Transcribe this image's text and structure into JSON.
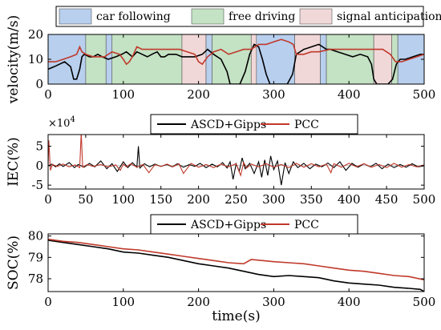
{
  "chart_data": [
    {
      "type": "line",
      "name": "velocity",
      "ylabel": "velocity(m/s)",
      "xlabel": "",
      "xlim": [
        0,
        500
      ],
      "ylim": [
        0,
        20
      ],
      "xticks": [
        "0",
        "100",
        "200",
        "300",
        "400",
        "500"
      ],
      "yticks": [
        "0",
        "10",
        "20"
      ],
      "legend": {
        "placement": "top",
        "entries": [
          {
            "label": "car following",
            "color": "#b8cfee"
          },
          {
            "label": "free driving",
            "color": "#c4e2c4"
          },
          {
            "label": "signal anticipation",
            "color": "#f1d8d8"
          }
        ]
      },
      "regions": [
        {
          "x0": 0,
          "x1": 50,
          "kind": "car following"
        },
        {
          "x0": 50,
          "x1": 77,
          "kind": "free driving"
        },
        {
          "x0": 77,
          "x1": 85,
          "kind": "car following"
        },
        {
          "x0": 85,
          "x1": 178,
          "kind": "free driving"
        },
        {
          "x0": 178,
          "x1": 210,
          "kind": "signal anticipation"
        },
        {
          "x0": 210,
          "x1": 218,
          "kind": "car following"
        },
        {
          "x0": 218,
          "x1": 270,
          "kind": "free driving"
        },
        {
          "x0": 270,
          "x1": 277,
          "kind": "signal anticipation"
        },
        {
          "x0": 277,
          "x1": 328,
          "kind": "car following"
        },
        {
          "x0": 328,
          "x1": 362,
          "kind": "signal anticipation"
        },
        {
          "x0": 362,
          "x1": 370,
          "kind": "car following"
        },
        {
          "x0": 370,
          "x1": 433,
          "kind": "free driving"
        },
        {
          "x0": 433,
          "x1": 457,
          "kind": "signal anticipation"
        },
        {
          "x0": 457,
          "x1": 465,
          "kind": "free driving"
        },
        {
          "x0": 465,
          "x1": 500,
          "kind": "car following"
        }
      ],
      "series": [
        {
          "color": "#000000",
          "x": [
            0,
            8,
            15,
            22,
            30,
            34,
            38,
            42,
            45,
            48,
            55,
            60,
            66,
            72,
            80,
            90,
            98,
            104,
            108,
            112,
            118,
            125,
            132,
            138,
            145,
            150,
            155,
            160,
            170,
            178,
            185,
            195,
            205,
            212,
            220,
            230,
            238,
            242,
            245,
            250,
            255,
            262,
            268,
            274,
            280,
            285,
            290,
            295,
            300,
            305,
            318,
            325,
            330,
            340,
            350,
            360,
            365,
            370,
            375,
            385,
            395,
            405,
            415,
            425,
            430,
            433,
            437,
            445,
            452,
            458,
            463,
            468,
            475,
            485,
            495,
            500
          ],
          "y": [
            6,
            7,
            8,
            9,
            7,
            2,
            2,
            6,
            11,
            12,
            11,
            11,
            12,
            11,
            10,
            11,
            12,
            13,
            12,
            11,
            13,
            12,
            11,
            12,
            13,
            11,
            11,
            12,
            12,
            11,
            11,
            11,
            12,
            14,
            12,
            10,
            5,
            0,
            0,
            0,
            0,
            5,
            12,
            16,
            15,
            10,
            4,
            0,
            0,
            0,
            0,
            4,
            12,
            14,
            15,
            16,
            15,
            14,
            14,
            13,
            12,
            11,
            12,
            11,
            8,
            2,
            0,
            0,
            0,
            2,
            8,
            10,
            10,
            11,
            12,
            12
          ]
        },
        {
          "color": "#c0392b",
          "x": [
            0,
            10,
            20,
            30,
            38,
            42,
            45,
            50,
            60,
            75,
            85,
            95,
            100,
            104,
            108,
            112,
            118,
            125,
            135,
            150,
            165,
            175,
            185,
            195,
            200,
            205,
            212,
            220,
            230,
            240,
            250,
            260,
            270,
            280,
            290,
            300,
            310,
            320,
            326,
            330,
            340,
            350,
            360,
            375,
            390,
            400,
            420,
            435,
            445,
            455,
            462,
            470,
            480,
            490,
            500
          ],
          "y": [
            9,
            9,
            10,
            11,
            12,
            15,
            13,
            12,
            11,
            11,
            13,
            12,
            10,
            8,
            9,
            11,
            15,
            14,
            14,
            14,
            14,
            14,
            13,
            12,
            9,
            8,
            11,
            13,
            14,
            12,
            13,
            14,
            14,
            16,
            16,
            17,
            18,
            17,
            16,
            12,
            12,
            13,
            13,
            14,
            14,
            14,
            14,
            14,
            14,
            12,
            9,
            9,
            10,
            11,
            12
          ]
        }
      ]
    },
    {
      "type": "line",
      "name": "iec",
      "ylabel": "IEC(%)",
      "xlabel": "",
      "xlim": [
        0,
        500
      ],
      "ylim": [
        -6,
        8
      ],
      "exponent_label": "×10",
      "exponent_power": "4",
      "xticks": [
        "0",
        "50",
        "100",
        "150",
        "200",
        "250",
        "300",
        "350",
        "400",
        "450",
        "500"
      ],
      "yticks": [
        "-5",
        "0",
        "5"
      ],
      "legend": {
        "placement": "top",
        "entries": [
          {
            "label": "ASCD+Gipps",
            "color": "#000000"
          },
          {
            "label": "PCC",
            "color": "#c0392b"
          }
        ]
      },
      "series": [
        {
          "name": "ASCD+Gipps",
          "color": "#000000",
          "x": [
            0,
            5,
            10,
            15,
            20,
            28,
            35,
            40,
            48,
            55,
            62,
            70,
            78,
            85,
            92,
            100,
            106,
            112,
            118,
            120,
            122,
            128,
            135,
            142,
            150,
            158,
            165,
            172,
            180,
            188,
            195,
            202,
            210,
            218,
            225,
            232,
            238,
            242,
            246,
            250,
            254,
            258,
            262,
            268,
            274,
            280,
            284,
            288,
            292,
            296,
            300,
            305,
            310,
            315,
            320,
            326,
            332,
            340,
            348,
            356,
            364,
            372,
            380,
            388,
            396,
            404,
            412,
            420,
            428,
            436,
            444,
            452,
            460,
            468,
            476,
            484,
            492,
            500
          ],
          "y": [
            0,
            0.4,
            -0.3,
            0.5,
            -0.2,
            0.8,
            -0.5,
            0.3,
            -0.4,
            0.6,
            -0.3,
            1.2,
            -0.8,
            0.5,
            -1.5,
            1.0,
            -0.5,
            0.8,
            -0.4,
            5.0,
            -0.6,
            0.5,
            -0.3,
            0.4,
            -0.2,
            0.3,
            -0.3,
            0.5,
            -0.4,
            0.3,
            -0.2,
            0.6,
            -0.5,
            0.4,
            -0.3,
            0.8,
            -0.6,
            1.0,
            -3.5,
            0.5,
            -1.5,
            2.0,
            -0.8,
            0.6,
            -2.0,
            1.0,
            -3.0,
            1.5,
            -2.5,
            2.5,
            -1.0,
            1.2,
            -5.0,
            0.8,
            -2.0,
            1.0,
            -0.5,
            0.6,
            -0.8,
            0.4,
            -0.3,
            0.7,
            -0.5,
            1.0,
            -1.2,
            0.6,
            -0.4,
            0.5,
            -0.3,
            0.6,
            -0.8,
            0.4,
            -0.5,
            0.3,
            -0.4,
            0.5,
            -0.3,
            0
          ]
        },
        {
          "name": "PCC",
          "color": "#c0392b",
          "x": [
            0,
            1,
            3,
            6,
            12,
            20,
            28,
            36,
            42,
            44,
            46,
            52,
            60,
            70,
            80,
            90,
            96,
            100,
            104,
            110,
            118,
            126,
            134,
            142,
            150,
            158,
            166,
            174,
            180,
            190,
            200,
            210,
            220,
            230,
            240,
            250,
            256,
            260,
            264,
            270,
            280,
            290,
            300,
            310,
            320,
            330,
            340,
            350,
            360,
            370,
            376,
            380,
            390,
            400,
            410,
            420,
            430,
            440,
            450,
            460,
            470,
            480,
            490,
            500
          ],
          "y": [
            0,
            6.5,
            -1.2,
            0.3,
            -0.2,
            0.4,
            -0.3,
            0.2,
            -0.5,
            8.5,
            -0.4,
            0.3,
            -0.2,
            0.3,
            -0.3,
            0.2,
            -1.2,
            0.4,
            -0.3,
            0.5,
            -0.4,
            0.3,
            -1.8,
            0.3,
            -0.2,
            0.4,
            -0.3,
            0.5,
            -2.0,
            0.6,
            -0.4,
            0.3,
            -0.5,
            0.4,
            -0.3,
            0.5,
            -2.5,
            0.8,
            -0.6,
            0.4,
            -0.3,
            0.5,
            -0.4,
            0.3,
            -0.5,
            0.6,
            -0.4,
            0.5,
            -0.3,
            0.4,
            -1.8,
            0.5,
            -0.4,
            0.6,
            -0.3,
            0.5,
            -0.4,
            0.3,
            -0.5,
            0.6,
            -0.4,
            0.3,
            -0.3,
            0.2
          ]
        }
      ]
    },
    {
      "type": "line",
      "name": "soc",
      "ylabel": "SOC(%)",
      "xlabel": "time(s)",
      "xlim": [
        0,
        500
      ],
      "ylim": [
        77.4,
        80.1
      ],
      "xticks": [
        "0",
        "100",
        "200",
        "300",
        "400",
        "500"
      ],
      "yticks": [
        "78",
        "79",
        "80"
      ],
      "legend": {
        "placement": "top",
        "entries": [
          {
            "label": "ASCD+Gipps",
            "color": "#000000"
          },
          {
            "label": "PCC",
            "color": "#c0392b"
          }
        ]
      },
      "series": [
        {
          "name": "ASCD+Gipps",
          "color": "#000000",
          "x": [
            0,
            20,
            40,
            60,
            80,
            100,
            120,
            140,
            160,
            180,
            200,
            220,
            240,
            260,
            280,
            300,
            320,
            340,
            360,
            380,
            400,
            420,
            440,
            460,
            480,
            495,
            500
          ],
          "y": [
            79.8,
            79.7,
            79.6,
            79.5,
            79.4,
            79.25,
            79.2,
            79.1,
            79.0,
            78.85,
            78.7,
            78.6,
            78.5,
            78.35,
            78.2,
            78.1,
            78.15,
            78.1,
            78.05,
            77.9,
            77.8,
            77.75,
            77.7,
            77.6,
            77.55,
            77.5,
            77.4
          ]
        },
        {
          "name": "PCC",
          "color": "#c0392b",
          "x": [
            0,
            20,
            40,
            60,
            80,
            100,
            120,
            140,
            160,
            180,
            200,
            220,
            240,
            260,
            270,
            300,
            320,
            340,
            360,
            380,
            400,
            420,
            440,
            460,
            480,
            500
          ],
          "y": [
            79.85,
            79.75,
            79.7,
            79.6,
            79.5,
            79.4,
            79.35,
            79.25,
            79.15,
            79.05,
            78.95,
            78.85,
            78.75,
            78.7,
            78.9,
            78.8,
            78.75,
            78.7,
            78.6,
            78.5,
            78.4,
            78.35,
            78.25,
            78.15,
            78.1,
            77.95
          ]
        }
      ]
    }
  ]
}
